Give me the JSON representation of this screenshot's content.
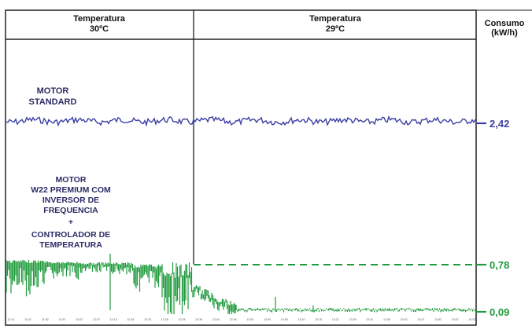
{
  "chart_data": {
    "type": "line",
    "header": {
      "left_label_line1": "Temperatura",
      "left_label_line2": "30ºC",
      "right_label_line1": "Temperatura",
      "right_label_line2": "29ºC",
      "unit_label_line1": "Consumo",
      "unit_label_line2": "(kW/h)"
    },
    "annotations": {
      "standard_lines": [
        "MOTOR",
        "STANDARD"
      ],
      "premium_lines": [
        "MOTOR",
        "W22 PREMIUM COM",
        "INVERSOR DE",
        "FREQUENCIA",
        "+",
        "CONTROLADOR DE",
        "TEMPERATURA"
      ]
    },
    "value_labels": [
      "2,42",
      "0,78",
      "0,09"
    ],
    "series": [
      {
        "name": "MOTOR STANDARD",
        "color": "#3b3fa3",
        "level": 2.42
      },
      {
        "name": "MOTOR W22 PREMIUM COM INVERSOR DE FREQUENCIA + CONTROLADOR DE TEMPERATURA",
        "color": "#1f9a3c",
        "start_level": 0.78,
        "end_level": 0.09
      }
    ],
    "colors": {
      "standard": "#3b3fa3",
      "premium": "#1f9a3c",
      "label_blue": "#3b3fa3",
      "label_green": "#1f9a3c"
    },
    "x_tick_labels": [
      "11:41",
      "11:47",
      "11:52",
      "11:57",
      "12:02",
      "12:07",
      "12:13",
      "12:18",
      "12:23",
      "12:28",
      "12:34",
      "12:39",
      "12:44",
      "12:49",
      "12:54",
      "13:00",
      "13:05",
      "13:10",
      "13:15",
      "13:21",
      "13:26",
      "13:31",
      "13:36",
      "13:42",
      "13:47",
      "13:52",
      "13:57",
      "14:02"
    ]
  }
}
